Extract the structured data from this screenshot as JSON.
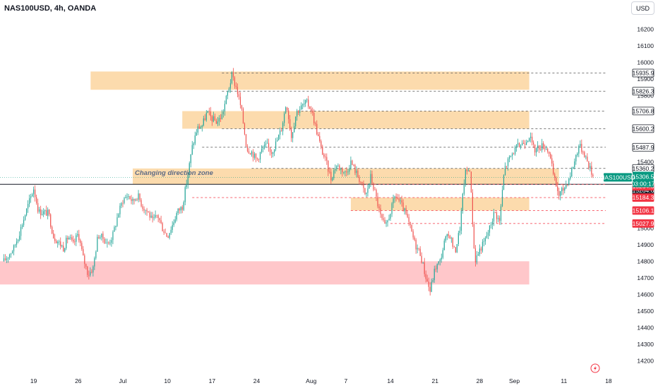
{
  "header": {
    "title": "NAS100USD, 4h, OANDA",
    "currency": "USD"
  },
  "colors": {
    "up": "#26a69a",
    "down": "#ef5350",
    "zone_orange": "#fcd7a4",
    "zone_red": "#ffc1c4",
    "price_tag": "#089981",
    "level_tag_red": "#f23645"
  },
  "icons": {
    "replay": "lightning-icon"
  },
  "chart_data": {
    "type": "candlestick",
    "symbol": "NAS100USD",
    "interval": "4h",
    "source": "OANDA",
    "ylim": [
      14180,
      16300
    ],
    "y_ticks": [
      14200,
      14300,
      14400,
      14500,
      14600,
      14700,
      14800,
      14900,
      15000,
      15100,
      15200,
      15300,
      15400,
      15500,
      15600,
      15700,
      15800,
      15900,
      16000,
      16100,
      16200
    ],
    "x_ticks": [
      {
        "label": "19",
        "bar": 6
      },
      {
        "label": "26",
        "bar": 15
      },
      {
        "label": "Jul",
        "bar": 24
      },
      {
        "label": "10",
        "bar": 33
      },
      {
        "label": "17",
        "bar": 42
      },
      {
        "label": "24",
        "bar": 51
      },
      {
        "label": "Aug",
        "bar": 62
      },
      {
        "label": "7",
        "bar": 69
      },
      {
        "label": "14",
        "bar": 78
      },
      {
        "label": "21",
        "bar": 87
      },
      {
        "label": "28",
        "bar": 96
      },
      {
        "label": "Sep",
        "bar": 103
      },
      {
        "label": "11",
        "bar": 113
      },
      {
        "label": "18",
        "bar": 122
      }
    ],
    "close_path": [
      [
        0,
        14800
      ],
      [
        2,
        14880
      ],
      [
        3,
        14960
      ],
      [
        5,
        15150
      ],
      [
        6,
        15240
      ],
      [
        7,
        15100
      ],
      [
        9,
        15090
      ],
      [
        10,
        14950
      ],
      [
        12,
        14880
      ],
      [
        13,
        14950
      ],
      [
        14,
        14900
      ],
      [
        15,
        14970
      ],
      [
        16,
        14820
      ],
      [
        17,
        14720
      ],
      [
        18,
        14760
      ],
      [
        19,
        14960
      ],
      [
        20,
        14940
      ],
      [
        21,
        14900
      ],
      [
        22,
        14960
      ],
      [
        23,
        15080
      ],
      [
        24,
        15170
      ],
      [
        25,
        15200
      ],
      [
        26,
        15160
      ],
      [
        27,
        15200
      ],
      [
        28,
        15130
      ],
      [
        29,
        15100
      ],
      [
        30,
        15040
      ],
      [
        31,
        15080
      ],
      [
        32,
        15000
      ],
      [
        33,
        14950
      ],
      [
        34,
        15020
      ],
      [
        35,
        15100
      ],
      [
        36,
        15130
      ],
      [
        37,
        15300
      ],
      [
        38,
        15490
      ],
      [
        39,
        15600
      ],
      [
        40,
        15620
      ],
      [
        41,
        15700
      ],
      [
        42,
        15660
      ],
      [
        43,
        15640
      ],
      [
        44,
        15680
      ],
      [
        45,
        15800
      ],
      [
        46,
        15920
      ],
      [
        47,
        15840
      ],
      [
        48,
        15700
      ],
      [
        49,
        15480
      ],
      [
        50,
        15460
      ],
      [
        51,
        15410
      ],
      [
        52,
        15470
      ],
      [
        53,
        15500
      ],
      [
        54,
        15460
      ],
      [
        55,
        15520
      ],
      [
        56,
        15600
      ],
      [
        57,
        15760
      ],
      [
        58,
        15550
      ],
      [
        59,
        15700
      ],
      [
        60,
        15730
      ],
      [
        61,
        15760
      ],
      [
        62,
        15720
      ],
      [
        63,
        15600
      ],
      [
        64,
        15480
      ],
      [
        65,
        15400
      ],
      [
        66,
        15300
      ],
      [
        67,
        15380
      ],
      [
        68,
        15360
      ],
      [
        69,
        15330
      ],
      [
        70,
        15400
      ],
      [
        71,
        15340
      ],
      [
        72,
        15280
      ],
      [
        73,
        15190
      ],
      [
        74,
        15310
      ],
      [
        75,
        15200
      ],
      [
        76,
        15070
      ],
      [
        77,
        15000
      ],
      [
        78,
        15100
      ],
      [
        79,
        15200
      ],
      [
        80,
        15150
      ],
      [
        81,
        15090
      ],
      [
        82,
        15000
      ],
      [
        83,
        14900
      ],
      [
        84,
        14850
      ],
      [
        85,
        14720
      ],
      [
        86,
        14620
      ],
      [
        87,
        14760
      ],
      [
        88,
        14800
      ],
      [
        89,
        14930
      ],
      [
        90,
        14960
      ],
      [
        91,
        14850
      ],
      [
        92,
        15000
      ],
      [
        93,
        15330
      ],
      [
        94,
        15360
      ],
      [
        95,
        14800
      ],
      [
        96,
        14870
      ],
      [
        97,
        14920
      ],
      [
        98,
        15000
      ],
      [
        99,
        15100
      ],
      [
        100,
        15040
      ],
      [
        101,
        15360
      ],
      [
        102,
        15420
      ],
      [
        103,
        15470
      ],
      [
        104,
        15500
      ],
      [
        105,
        15520
      ],
      [
        106,
        15560
      ],
      [
        107,
        15470
      ],
      [
        108,
        15490
      ],
      [
        109,
        15500
      ],
      [
        110,
        15460
      ],
      [
        111,
        15300
      ],
      [
        112,
        15200
      ],
      [
        113,
        15240
      ],
      [
        114,
        15300
      ],
      [
        115,
        15390
      ],
      [
        116,
        15500
      ],
      [
        117,
        15460
      ],
      [
        118,
        15380
      ],
      [
        119,
        15306
      ]
    ],
    "zones": [
      {
        "bar_from": 17.5,
        "bar_to": 106,
        "top": 15945,
        "bottom": 15835,
        "color": "orange"
      },
      {
        "bar_from": 36,
        "bar_to": 106,
        "top": 15706,
        "bottom": 15600,
        "color": "orange"
      },
      {
        "bar_from": 26,
        "bar_to": 112,
        "top": 15360,
        "bottom": 15264.6,
        "color": "orange",
        "label": "Changing direction zone"
      },
      {
        "bar_from": 70,
        "bar_to": 106,
        "top": 15184.3,
        "bottom": 15106.1,
        "color": "orange"
      },
      {
        "bar_from": -1,
        "bar_to": 106,
        "top": 14800,
        "bottom": 14660,
        "color": "red"
      }
    ],
    "levels": [
      {
        "value": 15935.9,
        "label": "15935.9",
        "bar_from": 44,
        "style": "dashed-black"
      },
      {
        "value": 15826.3,
        "label": "15826.3",
        "bar_from": 44,
        "style": "dashed-black"
      },
      {
        "value": 15706.8,
        "label": "15706.8",
        "bar_from": 60,
        "style": "dashed-black"
      },
      {
        "value": 15600.2,
        "label": "15600.2",
        "bar_from": 44,
        "style": "dashed-black"
      },
      {
        "value": 15487.9,
        "label": "15487.9",
        "bar_from": 40,
        "style": "dashed-black"
      },
      {
        "value": 15360.2,
        "label": "15360.2",
        "bar_from": 50,
        "style": "dashed-black"
      },
      {
        "value": 15264.6,
        "label": "15264.6",
        "bar_from": -1,
        "style": "solid-black"
      },
      {
        "value": 15264.5,
        "label": "15264.5",
        "bar_from": 73,
        "style": "dashed-red"
      },
      {
        "value": 15184.3,
        "label": "15184.3",
        "bar_from": 38,
        "style": "dashed-red"
      },
      {
        "value": 15106.1,
        "label": "15106.1",
        "bar_from": 70,
        "style": "dashed-red"
      },
      {
        "value": 15027.9,
        "label": "15027.9",
        "bar_from": 78,
        "style": "dashed-red"
      }
    ],
    "current": {
      "symbol": "NAS100USD",
      "price": 15306.5,
      "label": "15306.5",
      "countdown": "03:00:17"
    },
    "annotations": [
      "Changing direction zone"
    ]
  }
}
